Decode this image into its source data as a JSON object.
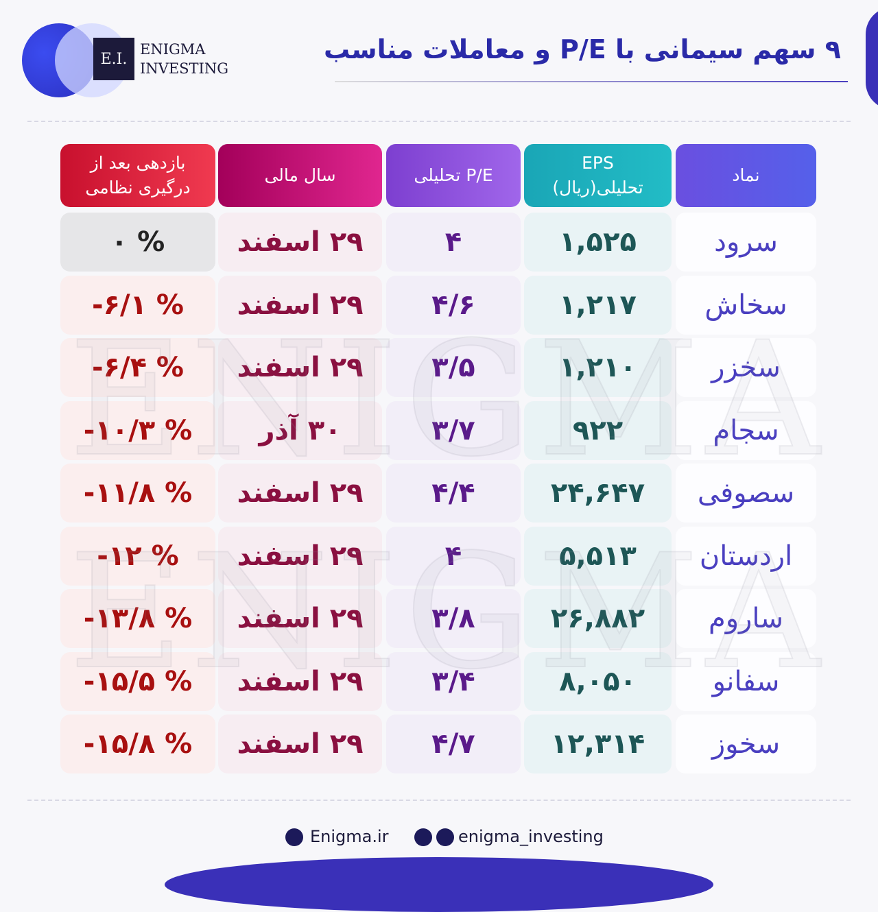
{
  "header": {
    "title": "۹ سهم سیمانی با P/E و معاملات مناسب",
    "logo_mark": "E.I.",
    "logo_line1": "ENIGMA",
    "logo_line2": "INVESTING"
  },
  "watermark": "ENIGMA",
  "table": {
    "columns": [
      "نماد",
      "EPS تحلیلی(ریال)",
      "P/E تحلیلی",
      "سال مالی",
      "بازدهی بعد از درگیری نظامی"
    ],
    "rows": [
      [
        "سرود",
        "۱,۵۲۵",
        "۴",
        "۲۹ اسفند",
        "۰ %"
      ],
      [
        "سخاش",
        "۱,۲۱۷",
        "۴/۶",
        "۲۹ اسفند",
        "-۶/۱ %"
      ],
      [
        "سخزر",
        "۱,۲۱۰",
        "۳/۵",
        "۲۹ اسفند",
        "-۶/۴ %"
      ],
      [
        "سجام",
        "۹۲۲",
        "۳/۷",
        "۳۰ آذر",
        "-۱۰/۳ %"
      ],
      [
        "سصوفی",
        "۲۴,۶۴۷",
        "۴/۴",
        "۲۹ اسفند",
        "-۱۱/۸ %"
      ],
      [
        "اردستان",
        "۵,۵۱۳",
        "۴",
        "۲۹ اسفند",
        "-۱۲ %"
      ],
      [
        "ساروم",
        "۲۶,۸۸۲",
        "۳/۸",
        "۲۹ اسفند",
        "-۱۳/۸ %"
      ],
      [
        "سفانو",
        "۸,۰۵۰",
        "۳/۴",
        "۲۹ اسفند",
        "-۱۵/۵ %"
      ],
      [
        "سخوز",
        "۱۲,۳۱۴",
        "۴/۷",
        "۲۹ اسفند",
        "-۱۵/۸ %"
      ]
    ]
  },
  "footer": {
    "website": "Enigma.ir",
    "social": "enigma_investing"
  }
}
